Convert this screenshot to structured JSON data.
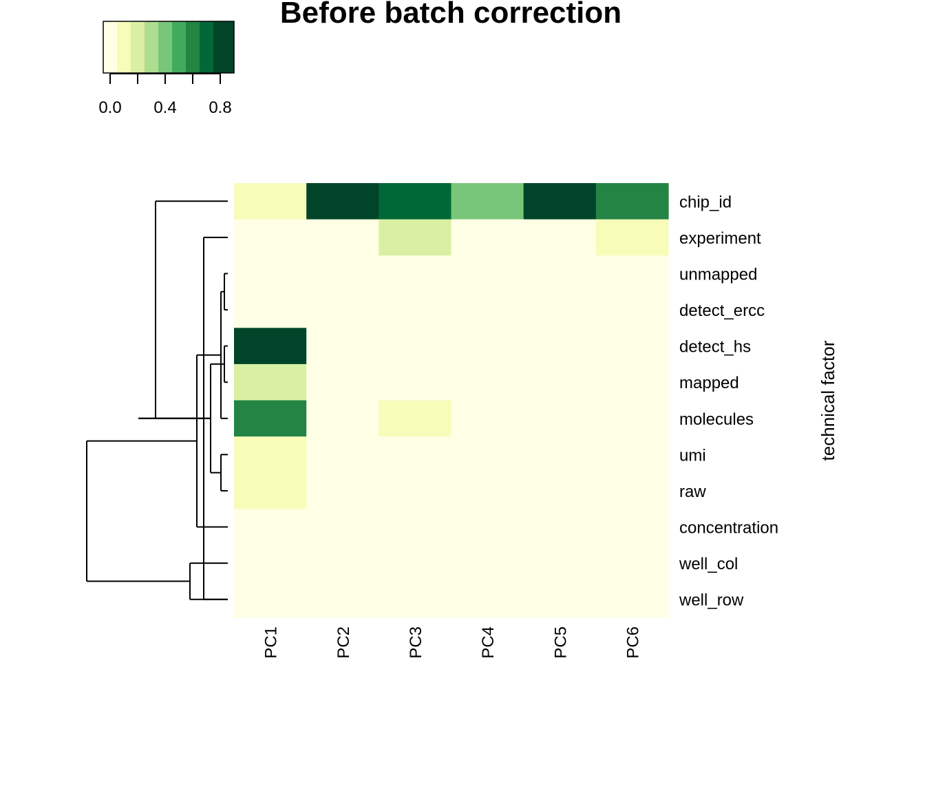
{
  "chart_data": {
    "type": "heatmap",
    "title": "Before batch correction",
    "xlabel": "",
    "ylabel": "technical factor",
    "columns": [
      "PC1",
      "PC2",
      "PC3",
      "PC4",
      "PC5",
      "PC6"
    ],
    "rows": [
      "chip_id",
      "experiment",
      "unmapped",
      "detect_ercc",
      "detect_hs",
      "mapped",
      "molecules",
      "umi",
      "raw",
      "concentration",
      "well_col",
      "well_row"
    ],
    "values": [
      [
        0.1,
        0.8,
        0.7,
        0.35,
        0.9,
        0.55
      ],
      [
        0.0,
        0.0,
        0.2,
        0.0,
        0.0,
        0.1
      ],
      [
        0.0,
        0.0,
        0.0,
        0.0,
        0.0,
        0.0
      ],
      [
        0.0,
        0.0,
        0.0,
        0.0,
        0.0,
        0.0
      ],
      [
        0.9,
        0.0,
        0.0,
        0.0,
        0.0,
        0.0
      ],
      [
        0.2,
        0.0,
        0.0,
        0.0,
        0.0,
        0.0
      ],
      [
        0.55,
        0.0,
        0.1,
        0.0,
        0.0,
        0.0
      ],
      [
        0.1,
        0.0,
        0.0,
        0.0,
        0.0,
        0.0
      ],
      [
        0.1,
        0.0,
        0.0,
        0.0,
        0.0,
        0.0
      ],
      [
        0.0,
        0.0,
        0.0,
        0.0,
        0.0,
        0.0
      ],
      [
        0.0,
        0.0,
        0.0,
        0.0,
        0.0,
        0.0
      ],
      [
        0.0,
        0.0,
        0.0,
        0.0,
        0.0,
        0.0
      ]
    ],
    "color_scale": {
      "breaks": [
        -0.05,
        0.05,
        0.15,
        0.25,
        0.35,
        0.45,
        0.55,
        0.65,
        0.75,
        0.85,
        0.95
      ],
      "colors": [
        "#FFFFE5",
        "#F7FCB9",
        "#D9F0A3",
        "#ADDD8E",
        "#78C679",
        "#41AB5D",
        "#238443",
        "#006837",
        "#004529",
        "#004529"
      ],
      "tick_values": [
        0.0,
        0.2,
        0.4,
        0.6,
        0.8
      ],
      "tick_labels": [
        "0.0",
        "",
        "0.4",
        "",
        "0.8"
      ]
    },
    "key_range": [
      -0.05,
      0.9
    ],
    "row_dendrogram": {
      "merges": [
        [
          2,
          3,
          0.05
        ],
        [
          4,
          5,
          0.05
        ],
        [
          7,
          8,
          0.1
        ],
        [
          6,
          12,
          0.1
        ],
        [
          13,
          14,
          0.25
        ],
        [
          1,
          11,
          0.35
        ],
        [
          9,
          15,
          0.45
        ],
        [
          10,
          11,
          0.55
        ],
        [
          16,
          17,
          1.3
        ],
        [
          0,
          16,
          1.05
        ],
        [
          18,
          19,
          2.05
        ]
      ],
      "height_max": 2.05
    }
  }
}
